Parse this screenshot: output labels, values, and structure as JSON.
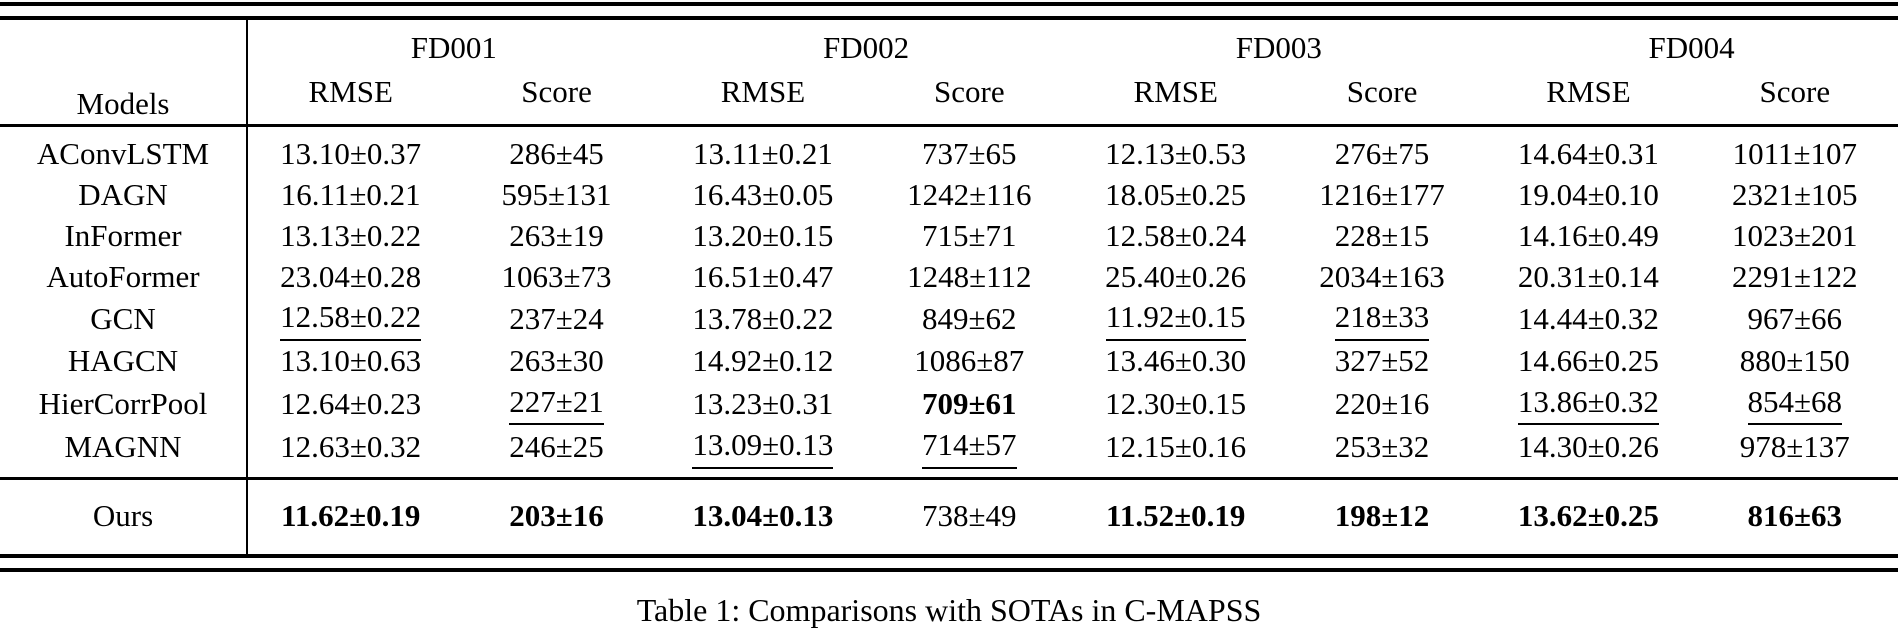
{
  "table": {
    "caption": "Table 1: Comparisons with SOTAs in C-MAPSS",
    "models_header": "Models",
    "groups": [
      {
        "label": "FD001"
      },
      {
        "label": "FD002"
      },
      {
        "label": "FD003"
      },
      {
        "label": "FD004"
      }
    ],
    "metric_headers": [
      "RMSE",
      "Score",
      "RMSE",
      "Score",
      "RMSE",
      "Score",
      "RMSE",
      "Score"
    ],
    "rows": [
      {
        "model": "AConvLSTM",
        "cells": [
          {
            "text": "13.10±0.37"
          },
          {
            "text": "286±45"
          },
          {
            "text": "13.11±0.21"
          },
          {
            "text": "737±65"
          },
          {
            "text": "12.13±0.53"
          },
          {
            "text": "276±75"
          },
          {
            "text": "14.64±0.31"
          },
          {
            "text": "1011±107"
          }
        ]
      },
      {
        "model": "DAGN",
        "cells": [
          {
            "text": "16.11±0.21"
          },
          {
            "text": "595±131"
          },
          {
            "text": "16.43±0.05"
          },
          {
            "text": "1242±116"
          },
          {
            "text": "18.05±0.25"
          },
          {
            "text": "1216±177"
          },
          {
            "text": "19.04±0.10"
          },
          {
            "text": "2321±105"
          }
        ]
      },
      {
        "model": "InFormer",
        "cells": [
          {
            "text": "13.13±0.22"
          },
          {
            "text": "263±19"
          },
          {
            "text": "13.20±0.15"
          },
          {
            "text": "715±71"
          },
          {
            "text": "12.58±0.24"
          },
          {
            "text": "228±15"
          },
          {
            "text": "14.16±0.49"
          },
          {
            "text": "1023±201"
          }
        ]
      },
      {
        "model": "AutoFormer",
        "cells": [
          {
            "text": "23.04±0.28"
          },
          {
            "text": "1063±73"
          },
          {
            "text": "16.51±0.47"
          },
          {
            "text": "1248±112"
          },
          {
            "text": "25.40±0.26"
          },
          {
            "text": "2034±163"
          },
          {
            "text": "20.31±0.14"
          },
          {
            "text": "2291±122"
          }
        ]
      },
      {
        "model": "GCN",
        "cells": [
          {
            "text": "12.58±0.22",
            "emphasis": "underline"
          },
          {
            "text": "237±24"
          },
          {
            "text": "13.78±0.22"
          },
          {
            "text": "849±62"
          },
          {
            "text": "11.92±0.15",
            "emphasis": "underline"
          },
          {
            "text": "218±33",
            "emphasis": "underline"
          },
          {
            "text": "14.44±0.32"
          },
          {
            "text": "967±66"
          }
        ]
      },
      {
        "model": "HAGCN",
        "cells": [
          {
            "text": "13.10±0.63"
          },
          {
            "text": "263±30"
          },
          {
            "text": "14.92±0.12"
          },
          {
            "text": "1086±87"
          },
          {
            "text": "13.46±0.30"
          },
          {
            "text": "327±52"
          },
          {
            "text": "14.66±0.25"
          },
          {
            "text": "880±150"
          }
        ]
      },
      {
        "model": "HierCorrPool",
        "cells": [
          {
            "text": "12.64±0.23"
          },
          {
            "text": "227±21",
            "emphasis": "underline"
          },
          {
            "text": "13.23±0.31"
          },
          {
            "text": "709±61",
            "emphasis": "bold"
          },
          {
            "text": "12.30±0.15"
          },
          {
            "text": "220±16"
          },
          {
            "text": "13.86±0.32",
            "emphasis": "underline"
          },
          {
            "text": "854±68",
            "emphasis": "underline"
          }
        ]
      },
      {
        "model": "MAGNN",
        "cells": [
          {
            "text": "12.63±0.32"
          },
          {
            "text": "246±25"
          },
          {
            "text": "13.09±0.13",
            "emphasis": "underline"
          },
          {
            "text": "714±57",
            "emphasis": "underline"
          },
          {
            "text": "12.15±0.16"
          },
          {
            "text": "253±32"
          },
          {
            "text": "14.30±0.26"
          },
          {
            "text": "978±137"
          }
        ]
      }
    ],
    "ours_row": {
      "model": "Ours",
      "cells": [
        {
          "text": "11.62±0.19",
          "emphasis": "bold"
        },
        {
          "text": "203±16",
          "emphasis": "bold"
        },
        {
          "text": "13.04±0.13",
          "emphasis": "bold"
        },
        {
          "text": "738±49"
        },
        {
          "text": "11.52±0.19",
          "emphasis": "bold"
        },
        {
          "text": "198±12",
          "emphasis": "bold"
        },
        {
          "text": "13.62±0.25",
          "emphasis": "bold"
        },
        {
          "text": "816±63",
          "emphasis": "bold"
        }
      ]
    }
  },
  "colors": {
    "text": "#000000",
    "background": "#ffffff",
    "rule": "#000000"
  }
}
